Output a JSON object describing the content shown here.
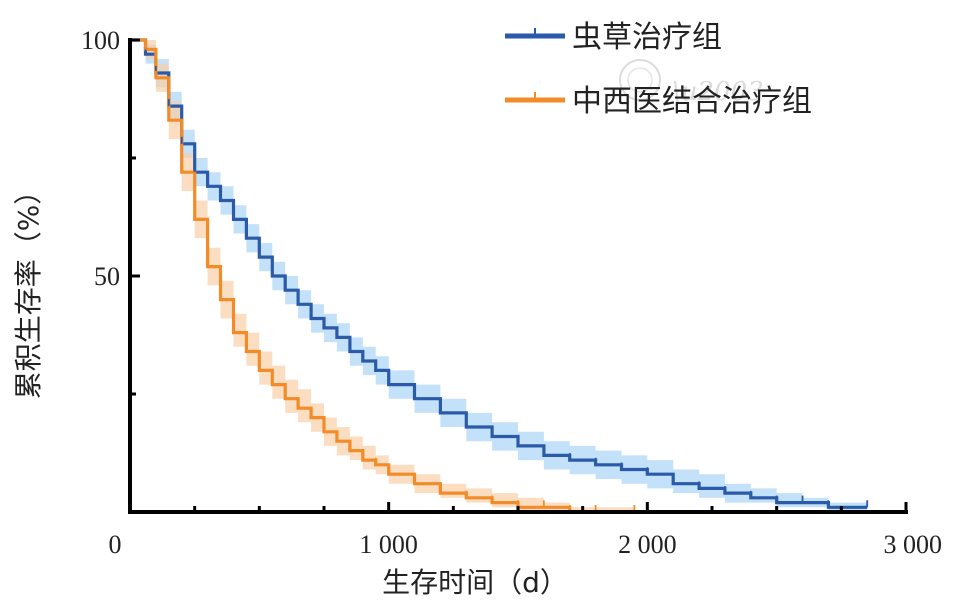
{
  "chart_data": {
    "type": "line",
    "subtype": "kaplan-meier-step",
    "xlabel": "生存时间（d）",
    "ylabel": "累积生存率（%）",
    "xlim": [
      0,
      3000
    ],
    "ylim": [
      0,
      100
    ],
    "xticks": [
      0,
      1000,
      2000,
      3000
    ],
    "xtick_labels": [
      "0",
      "1 000",
      "2 000",
      "3 000"
    ],
    "yticks": [
      50,
      100
    ],
    "ytick_labels": [
      "50",
      "100"
    ],
    "grid": false,
    "legend_position": "top-right",
    "confidence_band": true,
    "series": [
      {
        "name": "虫草治疗组",
        "color": "#2b5aa8",
        "band_color": "#a9d4f5",
        "x": [
          0,
          60,
          100,
          150,
          200,
          250,
          300,
          350,
          400,
          450,
          500,
          550,
          600,
          650,
          700,
          750,
          800,
          850,
          900,
          950,
          1000,
          1100,
          1200,
          1300,
          1400,
          1500,
          1600,
          1700,
          1800,
          1900,
          2000,
          2100,
          2200,
          2300,
          2400,
          2500,
          2600,
          2700,
          2850
        ],
        "y": [
          100,
          97,
          93,
          86,
          78,
          72,
          69,
          66,
          62,
          58,
          54,
          50,
          47,
          44,
          41,
          39,
          37,
          34,
          32,
          30,
          27,
          24,
          21,
          18,
          16,
          14,
          12,
          11,
          10,
          9,
          8,
          6,
          5,
          4,
          3,
          2,
          2,
          1,
          1
        ],
        "lower": [
          100,
          95,
          90,
          83,
          75,
          69,
          66,
          63,
          59,
          55,
          51,
          47,
          44,
          41,
          38,
          36,
          34,
          31,
          29,
          27,
          24,
          21,
          18,
          15,
          13,
          11,
          9,
          8,
          7,
          6,
          5,
          4,
          3,
          2,
          2,
          1,
          1,
          0,
          0
        ],
        "upper": [
          100,
          99,
          96,
          89,
          81,
          75,
          72,
          69,
          65,
          61,
          57,
          53,
          50,
          47,
          44,
          42,
          40,
          37,
          35,
          33,
          30,
          27,
          24,
          21,
          19,
          17,
          15,
          14,
          13,
          12,
          11,
          9,
          8,
          6,
          5,
          4,
          3,
          2,
          2
        ]
      },
      {
        "name": "中西医结合治疗组",
        "color": "#f28c28",
        "band_color": "#f9cfa6",
        "x": [
          0,
          60,
          100,
          150,
          200,
          250,
          300,
          350,
          400,
          450,
          500,
          550,
          600,
          650,
          700,
          750,
          800,
          850,
          900,
          950,
          1000,
          1100,
          1200,
          1300,
          1400,
          1500,
          1600,
          1700,
          1800,
          1950
        ],
        "y": [
          100,
          98,
          92,
          83,
          72,
          62,
          52,
          45,
          38,
          34,
          30,
          27,
          24,
          22,
          20,
          17,
          15,
          13,
          11,
          10,
          8,
          6,
          4,
          3,
          2,
          1,
          1,
          0,
          0,
          0
        ],
        "lower": [
          100,
          96,
          89,
          79,
          68,
          58,
          48,
          41,
          35,
          31,
          27,
          24,
          21,
          19,
          17,
          14,
          12,
          11,
          9,
          8,
          6,
          4,
          3,
          2,
          1,
          0,
          0,
          0,
          0,
          0
        ],
        "upper": [
          100,
          100,
          95,
          87,
          76,
          66,
          56,
          49,
          42,
          38,
          34,
          31,
          28,
          26,
          23,
          20,
          18,
          16,
          14,
          12,
          10,
          8,
          6,
          5,
          4,
          3,
          2,
          1,
          1,
          1
        ]
      }
    ]
  }
}
